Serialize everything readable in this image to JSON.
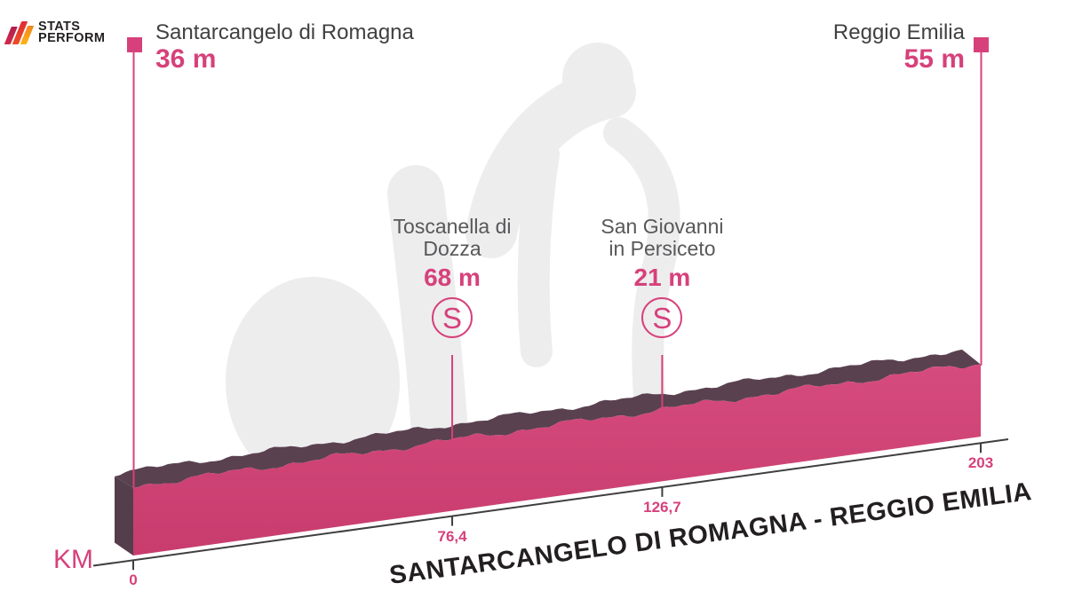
{
  "brand": {
    "line1": "STATS",
    "line2": "PERFORM"
  },
  "title": "SANTARCANGELO DI ROMAGNA - REGGIO EMILIA",
  "start": {
    "name": "Santarcangelo di Romagna",
    "elevation": "36 m"
  },
  "finish": {
    "name": "Reggio Emilia",
    "elevation": "55 m"
  },
  "sprints": [
    {
      "name_line1": "Toscanella di",
      "name_line2": "Dozza",
      "elevation": "68 m",
      "symbol": "S",
      "km": 76.4
    },
    {
      "name_line1": "San Giovanni",
      "name_line2": "in Persiceto",
      "elevation": "21 m",
      "symbol": "S",
      "km": 126.7
    }
  ],
  "axis": {
    "km_label": "KM",
    "ticks": [
      {
        "km": 0,
        "label": "0"
      },
      {
        "km": 76.4,
        "label": "76,4"
      },
      {
        "km": 126.7,
        "label": "126,7"
      },
      {
        "km": 203,
        "label": "203"
      }
    ]
  },
  "colors": {
    "accent_pink": "#d6417b",
    "profile_front": "#cf4376",
    "profile_front_light": "#d64b7d",
    "profile_front_deep": "#c73c6d",
    "profile_dark": "#5a4150",
    "profile_side": "#543e4b",
    "baseline": "#3f3f3f",
    "watermark": "#ededee",
    "label_gray": "#58585a",
    "label_dark": "#414042",
    "title_dark": "#231f20"
  },
  "chart_data": {
    "type": "area",
    "subtype": "cycling-stage-profile-3d-ribbon",
    "title": "SANTARCANGELO DI ROMAGNA - REGGIO EMILIA",
    "xlabel": "KM",
    "x_unit": "km",
    "y_unit": "m",
    "xlim": [
      0,
      203
    ],
    "x_ticks": [
      0,
      76.4,
      126.7,
      203
    ],
    "points": [
      {
        "km": 0,
        "elevation": 36,
        "name": "Santarcangelo di Romagna",
        "kind": "start"
      },
      {
        "km": 76.4,
        "elevation": 68,
        "name": "Toscanella di Dozza",
        "kind": "sprint"
      },
      {
        "km": 126.7,
        "elevation": 21,
        "name": "San Giovanni in Persiceto",
        "kind": "sprint"
      },
      {
        "km": 203,
        "elevation": 55,
        "name": "Reggio Emilia",
        "kind": "finish"
      }
    ],
    "legend": "none",
    "grid": false,
    "notes": "flat stage profile drawn as pink ribbon rising left to right; sprint (S) points marked with vertical lines"
  }
}
